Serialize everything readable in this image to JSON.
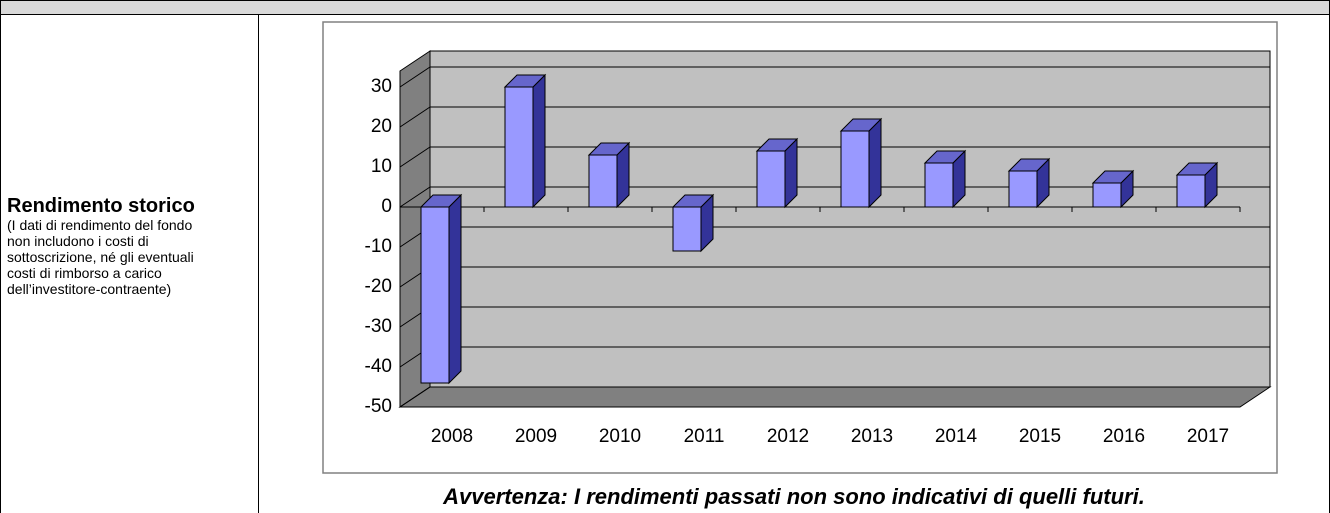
{
  "left_cell": {
    "title": "Rendimento storico",
    "note": "(I dati di rendimento del fondo non includono i costi di sottoscrizione, né gli eventuali costi di rimborso a carico dell’investitore-contraente)"
  },
  "footer_note": "Avvertenza: I rendimenti passati non sono indicativi di quelli futuri.",
  "chart_data": {
    "type": "bar3d",
    "categories": [
      "2008",
      "2009",
      "2010",
      "2011",
      "2012",
      "2013",
      "2014",
      "2015",
      "2016",
      "2017"
    ],
    "values": [
      -44,
      30,
      13,
      -11,
      14,
      19,
      11,
      9,
      6,
      8
    ],
    "color": "#9999ff",
    "ylim": [
      -50,
      30
    ],
    "yticks": [
      -50,
      -40,
      -30,
      -20,
      -10,
      0,
      10,
      20,
      30
    ],
    "grid": true
  }
}
